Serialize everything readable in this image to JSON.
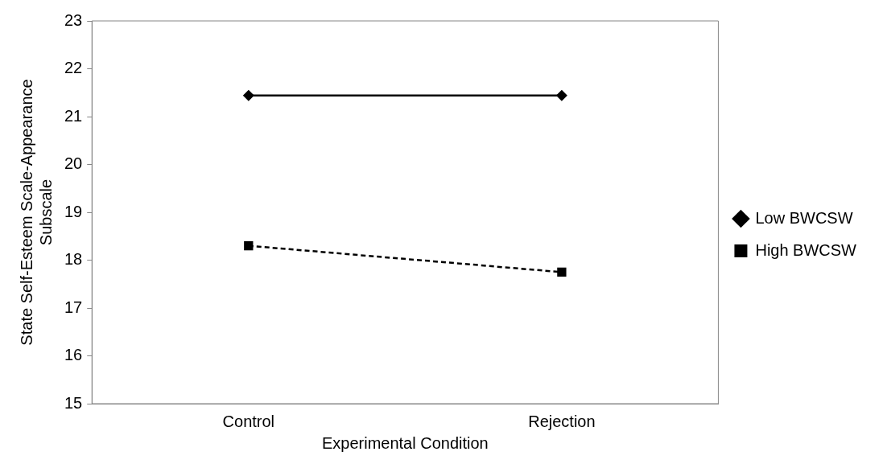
{
  "chart_data": {
    "type": "line",
    "xlabel": "Experimental Condition",
    "ylabel": "State Self-Esteem Scale-Appearance Subscale",
    "categories": [
      "Control",
      "Rejection"
    ],
    "series": [
      {
        "name": "Low BWCSW",
        "color": "#000000",
        "values": [
          21.44,
          21.44
        ],
        "marker": "diamond",
        "line_style": "solid"
      },
      {
        "name": "High BWCSW",
        "color": "#000000",
        "values": [
          18.3,
          17.75
        ],
        "marker": "square",
        "line_style": "dashed"
      }
    ],
    "ylim": [
      15,
      23
    ],
    "yticks": [
      15,
      16,
      17,
      18,
      19,
      20,
      21,
      22,
      23
    ],
    "grid": false,
    "legend": "right"
  }
}
